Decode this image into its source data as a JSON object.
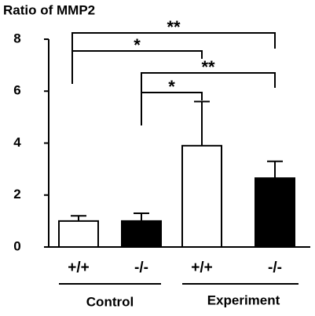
{
  "chart_data": {
    "type": "bar",
    "title": "Ratio of MMP2",
    "categories": [
      "+/+",
      "-/-",
      "+/+",
      "-/-"
    ],
    "groups": [
      "Control",
      "Experiment"
    ],
    "values": [
      1.0,
      1.0,
      3.9,
      2.65
    ],
    "errors": [
      0.2,
      0.3,
      1.7,
      0.65
    ],
    "colors": [
      "#ffffff",
      "#000000",
      "#ffffff",
      "#000000"
    ],
    "ylim": [
      0,
      8
    ],
    "yticks": [
      0,
      2,
      4,
      6,
      8
    ],
    "annotations": [
      "**",
      "*",
      "**",
      "*"
    ]
  }
}
